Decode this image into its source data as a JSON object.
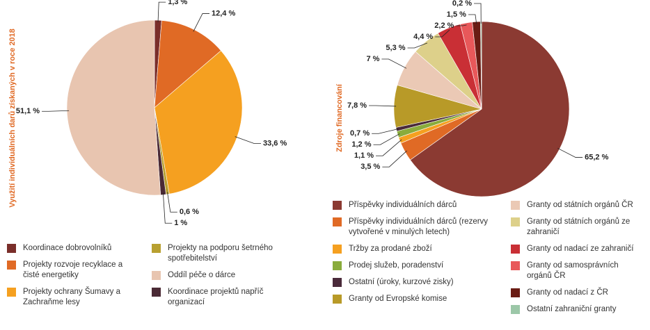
{
  "chart_data": [
    {
      "type": "pie",
      "title": "Využití individuálních darů získaných v roce 2018",
      "categories": [
        "Koordinace dobrovolníků",
        "Projekty rozvoje recyklace a čisté energetiky",
        "Projekty ochrany Šumavy a Zachraňme lesy",
        "Projekty na podporu šetrného spotřebitelství",
        "Koordinace projektů napříč organizací",
        "Oddíl péče o dárce"
      ],
      "values": [
        1.3,
        12.4,
        33.6,
        0.6,
        1,
        51.1
      ],
      "value_labels": [
        "1,3 %",
        "12,4 %",
        "33,6 %",
        "0,6 %",
        "1 %",
        "51,1 %"
      ],
      "colors": [
        "#7a2e2a",
        "#e06a25",
        "#f5a020",
        "#b8a030",
        "#4a2a35",
        "#e8c5b0"
      ]
    },
    {
      "type": "pie",
      "title": "Zdroje financování",
      "categories": [
        "Příspěvky individuálních dárců",
        "Příspěvky individuálních dárců (rezervy vytvořené v minulých letech)",
        "Tržby za prodané zboží",
        "Prodej služeb, poradenství",
        "Ostatní (úroky, kurzové zisky)",
        "Granty od Evropské komise",
        "Granty od státních orgánů ČR",
        "Granty od státních orgánů ze zahraničí",
        "Granty od nadací ze zahraničí",
        "Granty od samosprávních orgánů ČR",
        "Granty od nadací z ČR",
        "Ostatní zahraniční granty"
      ],
      "values": [
        65.2,
        3.5,
        1.1,
        1.2,
        0.7,
        7.8,
        7,
        5.3,
        4.4,
        2.2,
        1.5,
        0.2
      ],
      "value_labels": [
        "65,2 %",
        "3,5 %",
        "1,1 %",
        "1,2 %",
        "0,7 %",
        "7,8 %",
        "7 %",
        "5,3 %",
        "4,4 %",
        "2,2 %",
        "1,5 %",
        "0,2 %"
      ],
      "colors": [
        "#8b3a32",
        "#e06a25",
        "#f5a020",
        "#8aac3c",
        "#4a2a3a",
        "#b89a28",
        "#ebc9b5",
        "#ddd08a",
        "#c92f35",
        "#e8585a",
        "#6a1c14",
        "#9cc7a8"
      ]
    }
  ]
}
